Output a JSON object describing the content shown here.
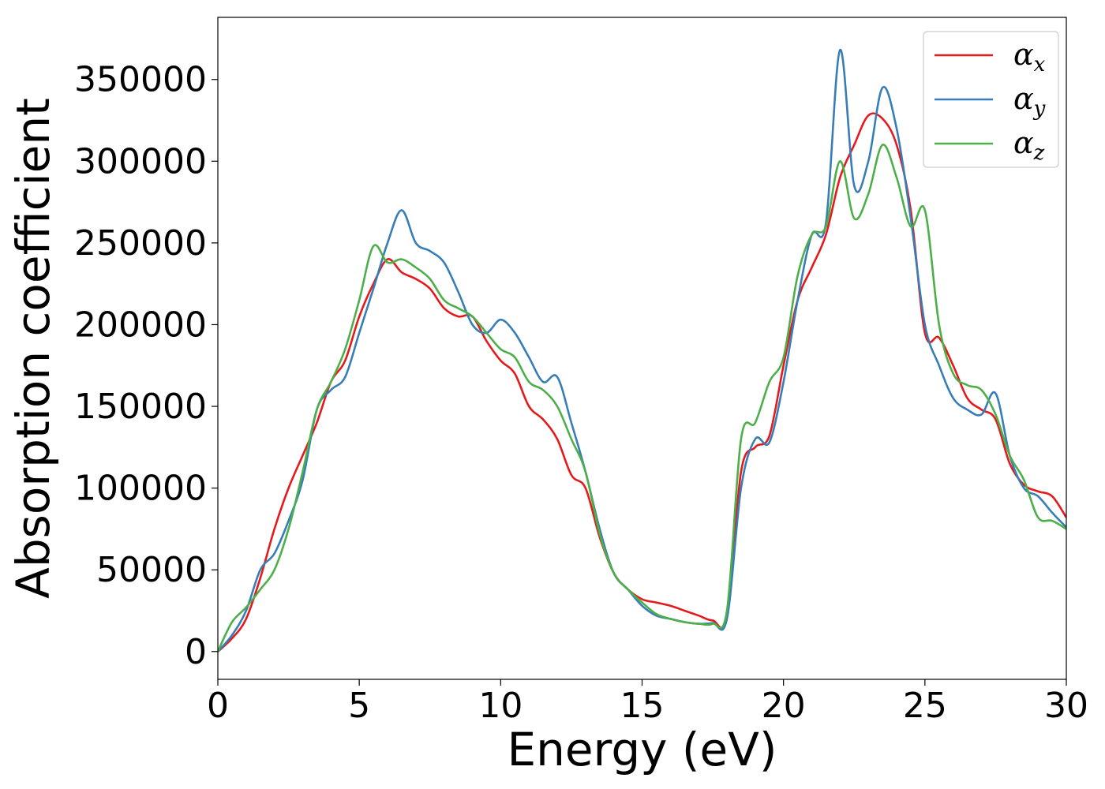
{
  "chart_data": {
    "type": "line",
    "title": "",
    "xlabel": "Energy (eV)",
    "ylabel": "Absorption coefficient",
    "xlim": [
      0,
      30
    ],
    "ylim": [
      -17000,
      388000
    ],
    "xticks": [
      0,
      5,
      10,
      15,
      20,
      25,
      30
    ],
    "xtick_labels": [
      "0",
      "5",
      "10",
      "15",
      "20",
      "25",
      "30"
    ],
    "yticks": [
      0,
      50000,
      100000,
      150000,
      200000,
      250000,
      300000,
      350000
    ],
    "ytick_labels": [
      "0",
      "50000",
      "100000",
      "150000",
      "200000",
      "250000",
      "300000",
      "350000"
    ],
    "grid": false,
    "legend_position": "top-right",
    "series": [
      {
        "name": "α_x",
        "symbol": "α",
        "subscript": "x",
        "color": "#e41a1c",
        "x": [
          0,
          0.5,
          1,
          1.5,
          2,
          2.5,
          3,
          3.5,
          4,
          4.5,
          5,
          5.5,
          6,
          6.5,
          7,
          7.5,
          8,
          8.5,
          9,
          9.5,
          10,
          10.5,
          11,
          11.5,
          12,
          12.5,
          13,
          13.5,
          14,
          14.5,
          15,
          15.5,
          16,
          16.5,
          17,
          17.5,
          18,
          18.5,
          19,
          19.5,
          20,
          20.5,
          21,
          21.5,
          22,
          22.5,
          23,
          23.5,
          24,
          24.5,
          25,
          25.5,
          26,
          26.5,
          27,
          27.5,
          28,
          28.5,
          29,
          29.5,
          30
        ],
        "values": [
          0,
          8000,
          20000,
          45000,
          75000,
          100000,
          120000,
          140000,
          165000,
          178000,
          205000,
          225000,
          240000,
          232000,
          228000,
          222000,
          210000,
          205000,
          205000,
          190000,
          178000,
          170000,
          150000,
          142000,
          130000,
          108000,
          100000,
          70000,
          48000,
          38000,
          32000,
          30000,
          28000,
          25000,
          22000,
          19000,
          22000,
          110000,
          125000,
          132000,
          175000,
          215000,
          235000,
          255000,
          290000,
          310000,
          328000,
          326000,
          310000,
          270000,
          195000,
          192000,
          175000,
          155000,
          148000,
          142000,
          115000,
          102000,
          98000,
          95000,
          82000
        ]
      },
      {
        "name": "α_y",
        "symbol": "α",
        "subscript": "y",
        "color": "#377eb8",
        "x": [
          0,
          0.5,
          1,
          1.5,
          2,
          2.5,
          3,
          3.5,
          4,
          4.5,
          5,
          5.5,
          6,
          6.5,
          7,
          7.5,
          8,
          8.5,
          9,
          9.5,
          10,
          10.5,
          11,
          11.5,
          12,
          12.5,
          13,
          13.5,
          14,
          14.5,
          15,
          15.5,
          16,
          16.5,
          17,
          17.5,
          18,
          18.5,
          19,
          19.5,
          20,
          20.5,
          21,
          21.5,
          22,
          22.5,
          23,
          23.5,
          24,
          24.5,
          25,
          25.5,
          26,
          26.5,
          27,
          27.5,
          28,
          28.5,
          29,
          29.5,
          30
        ],
        "values": [
          0,
          10000,
          25000,
          50000,
          60000,
          80000,
          105000,
          148000,
          160000,
          168000,
          195000,
          222000,
          250000,
          270000,
          250000,
          245000,
          238000,
          220000,
          200000,
          195000,
          203000,
          195000,
          180000,
          165000,
          168000,
          140000,
          110000,
          75000,
          48000,
          38000,
          28000,
          22000,
          20000,
          18000,
          17000,
          17500,
          20000,
          100000,
          130000,
          128000,
          165000,
          215000,
          255000,
          262000,
          368000,
          285000,
          300000,
          345000,
          320000,
          265000,
          200000,
          175000,
          155000,
          148000,
          145000,
          158000,
          120000,
          100000,
          95000,
          85000,
          76000
        ]
      },
      {
        "name": "α_z",
        "symbol": "α",
        "subscript": "z",
        "color": "#4daf4a",
        "x": [
          0,
          0.5,
          1,
          1.5,
          2,
          2.5,
          3,
          3.5,
          4,
          4.5,
          5,
          5.5,
          6,
          6.5,
          7,
          7.5,
          8,
          8.5,
          9,
          9.5,
          10,
          10.5,
          11,
          11.5,
          12,
          12.5,
          13,
          13.5,
          14,
          14.5,
          15,
          15.5,
          16,
          16.5,
          17,
          17.5,
          18,
          18.5,
          19,
          19.5,
          20,
          20.5,
          21,
          21.5,
          22,
          22.5,
          23,
          23.5,
          24,
          24.5,
          25,
          25.5,
          26,
          26.5,
          27,
          27.5,
          28,
          28.5,
          29,
          29.5,
          30
        ],
        "values": [
          0,
          18000,
          27000,
          38000,
          50000,
          75000,
          110000,
          148000,
          165000,
          185000,
          215000,
          248000,
          238000,
          240000,
          235000,
          228000,
          215000,
          210000,
          205000,
          195000,
          185000,
          180000,
          165000,
          160000,
          150000,
          130000,
          110000,
          72000,
          48000,
          38000,
          30000,
          23000,
          20000,
          18000,
          17000,
          17000,
          25000,
          130000,
          140000,
          165000,
          180000,
          230000,
          255000,
          260000,
          300000,
          265000,
          280000,
          310000,
          290000,
          260000,
          270000,
          200000,
          170000,
          163000,
          160000,
          145000,
          120000,
          105000,
          82000,
          80000,
          75000
        ]
      }
    ]
  }
}
